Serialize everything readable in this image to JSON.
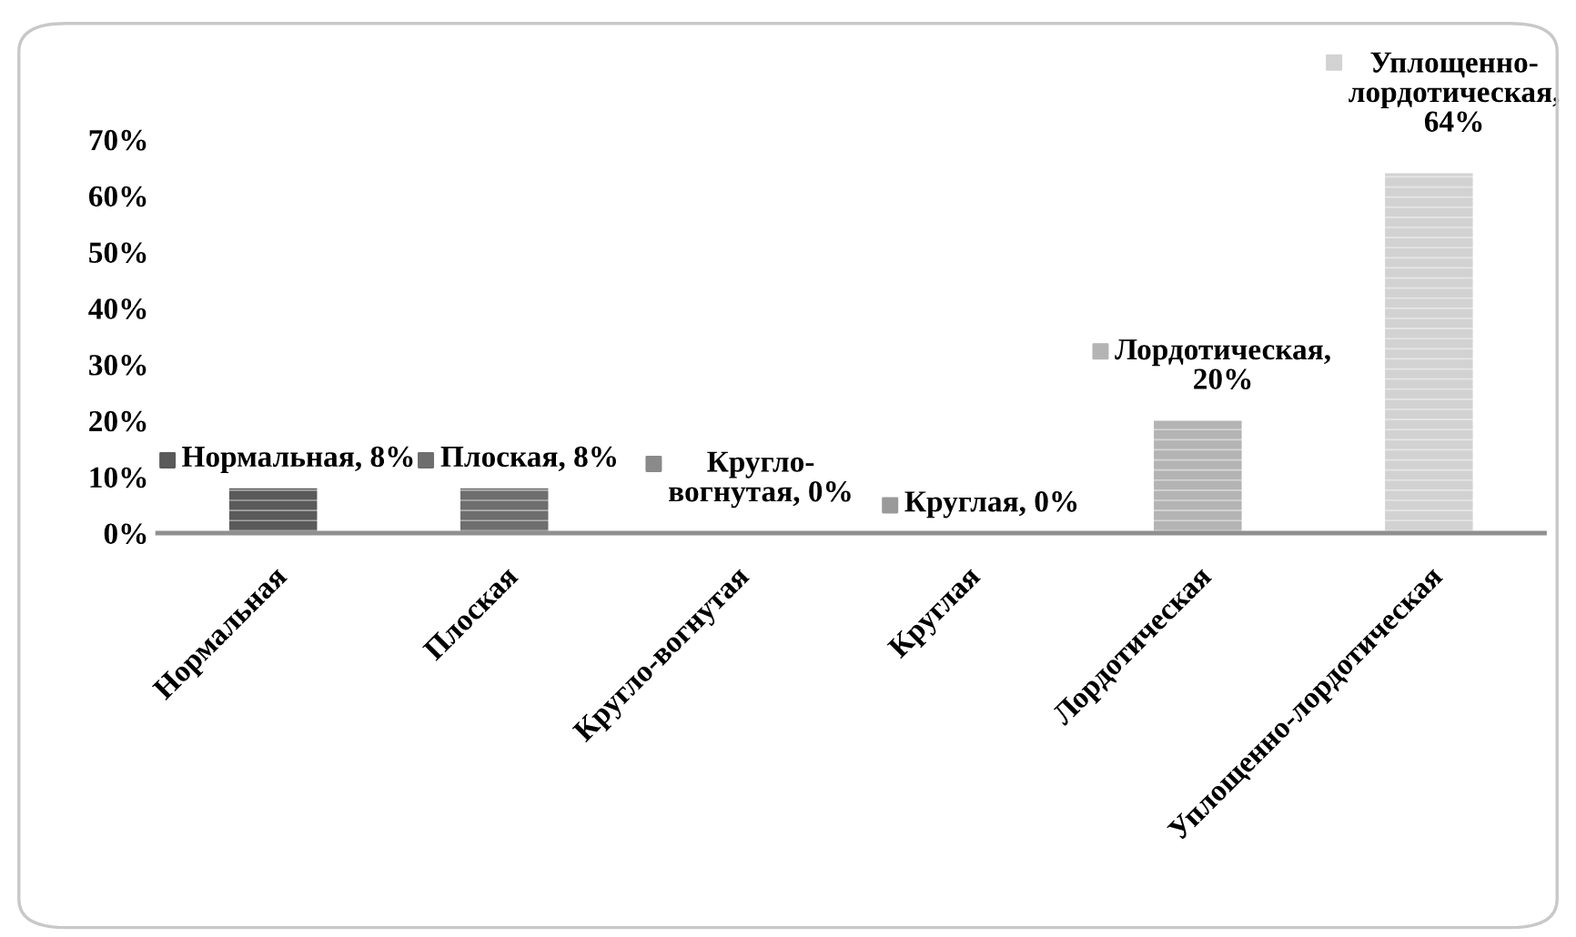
{
  "chart_data": {
    "type": "bar",
    "categories": [
      "Нормальная",
      "Плоская",
      "Кругло-вогнутая",
      "Круглая",
      "Лордотическая",
      "Уплощенно-лордотическая"
    ],
    "values": [
      8,
      8,
      0,
      0,
      20,
      64
    ],
    "colors": [
      "#5a5a5a",
      "#6e6e6e",
      "#8a8a8a",
      "#9a9a9a",
      "#b4b4b4",
      "#d2d2d2"
    ],
    "value_labels": [
      "Нормальная, 8%",
      "Плоская, 8%",
      "Кругло-\nвогнутая, 0%",
      "Круглая, 0%",
      "Лордотическая,\n20%",
      "Уплощенно-\nлордотическая,\n64%"
    ],
    "ylim": [
      0,
      70
    ],
    "yticks": [
      {
        "value": 0,
        "label": "0%"
      },
      {
        "value": 10,
        "label": "10%"
      },
      {
        "value": 20,
        "label": "20%"
      },
      {
        "value": 30,
        "label": "30%"
      },
      {
        "value": 40,
        "label": "40%"
      },
      {
        "value": 50,
        "label": "50%"
      },
      {
        "value": 60,
        "label": "60%"
      },
      {
        "value": 70,
        "label": "70%"
      }
    ],
    "grid": false,
    "legend": false
  }
}
